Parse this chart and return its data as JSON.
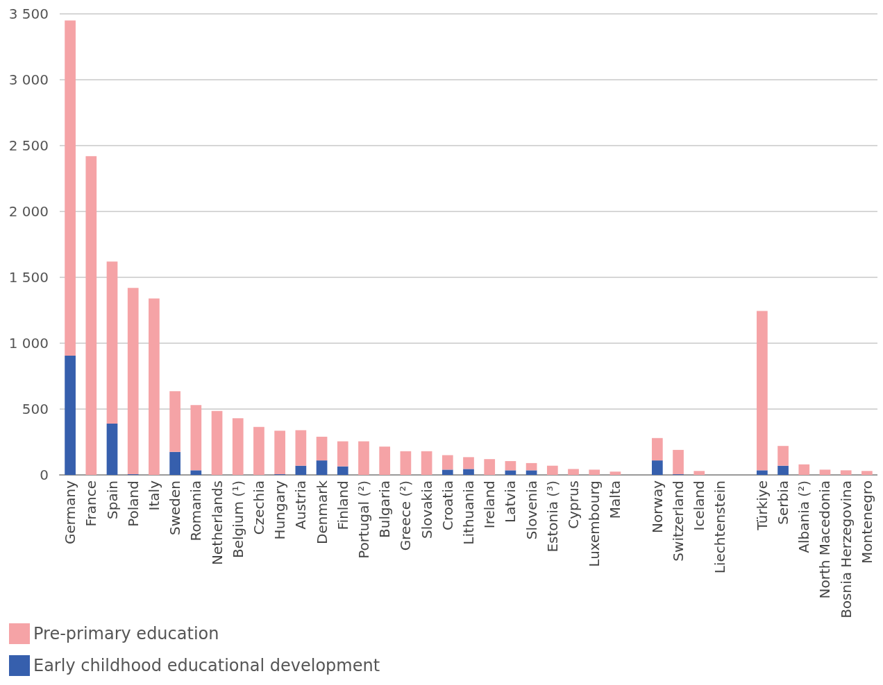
{
  "chart_data": {
    "type": "bar",
    "stacked": true,
    "legend": "bottom left",
    "grid": "y",
    "categories": [
      "Germany",
      "France",
      "Spain",
      "Poland",
      "Italy",
      "Sweden",
      "Romania",
      "Netherlands",
      "Belgium (¹)",
      "Czechia",
      "Hungary",
      "Austria",
      "Denmark",
      "Finland",
      "Portugal (²)",
      "Bulgaria",
      "Greece (²)",
      "Slovakia",
      "Croatia",
      "Lithuania",
      "Ireland",
      "Latvia",
      "Slovenia",
      "Estonia (³)",
      "Cyprus",
      "Luxembourg",
      "Malta",
      null,
      "Norway",
      "Switzerland",
      "Iceland",
      "Liechtenstein",
      null,
      "Türkiye",
      "Serbia",
      "Albania (²)",
      "North Macedonia",
      "Bosnia Herzegovina",
      "Montenegro"
    ],
    "series": [
      {
        "name": "Early childhood educational development",
        "color": "#365fad",
        "values": [
          905,
          0,
          390,
          5,
          0,
          175,
          35,
          0,
          0,
          0,
          5,
          70,
          110,
          65,
          0,
          0,
          0,
          0,
          40,
          45,
          0,
          35,
          35,
          0,
          0,
          0,
          0,
          null,
          110,
          5,
          0,
          0,
          null,
          35,
          70,
          0,
          0,
          0,
          0
        ]
      },
      {
        "name": "Pre-primary education",
        "color": "#f5a3a6",
        "values": [
          2545,
          2420,
          1230,
          1415,
          1340,
          460,
          495,
          485,
          430,
          365,
          330,
          270,
          180,
          190,
          255,
          215,
          180,
          180,
          110,
          90,
          120,
          70,
          55,
          70,
          45,
          40,
          25,
          null,
          170,
          185,
          30,
          0,
          null,
          1210,
          150,
          80,
          40,
          35,
          30
        ]
      }
    ],
    "ylim": [
      0,
      3500
    ],
    "yticks": [
      0,
      {
        "value": 500,
        "label": "500"
      },
      {
        "value": 1000,
        "label": "1 000"
      },
      {
        "value": 1500,
        "label": "1 500"
      },
      {
        "value": 2000,
        "label": "2 000"
      },
      {
        "value": 2500,
        "label": "2 500"
      },
      {
        "value": 3000,
        "label": "3 000"
      },
      {
        "value": 3500,
        "label": "3 500"
      }
    ]
  }
}
